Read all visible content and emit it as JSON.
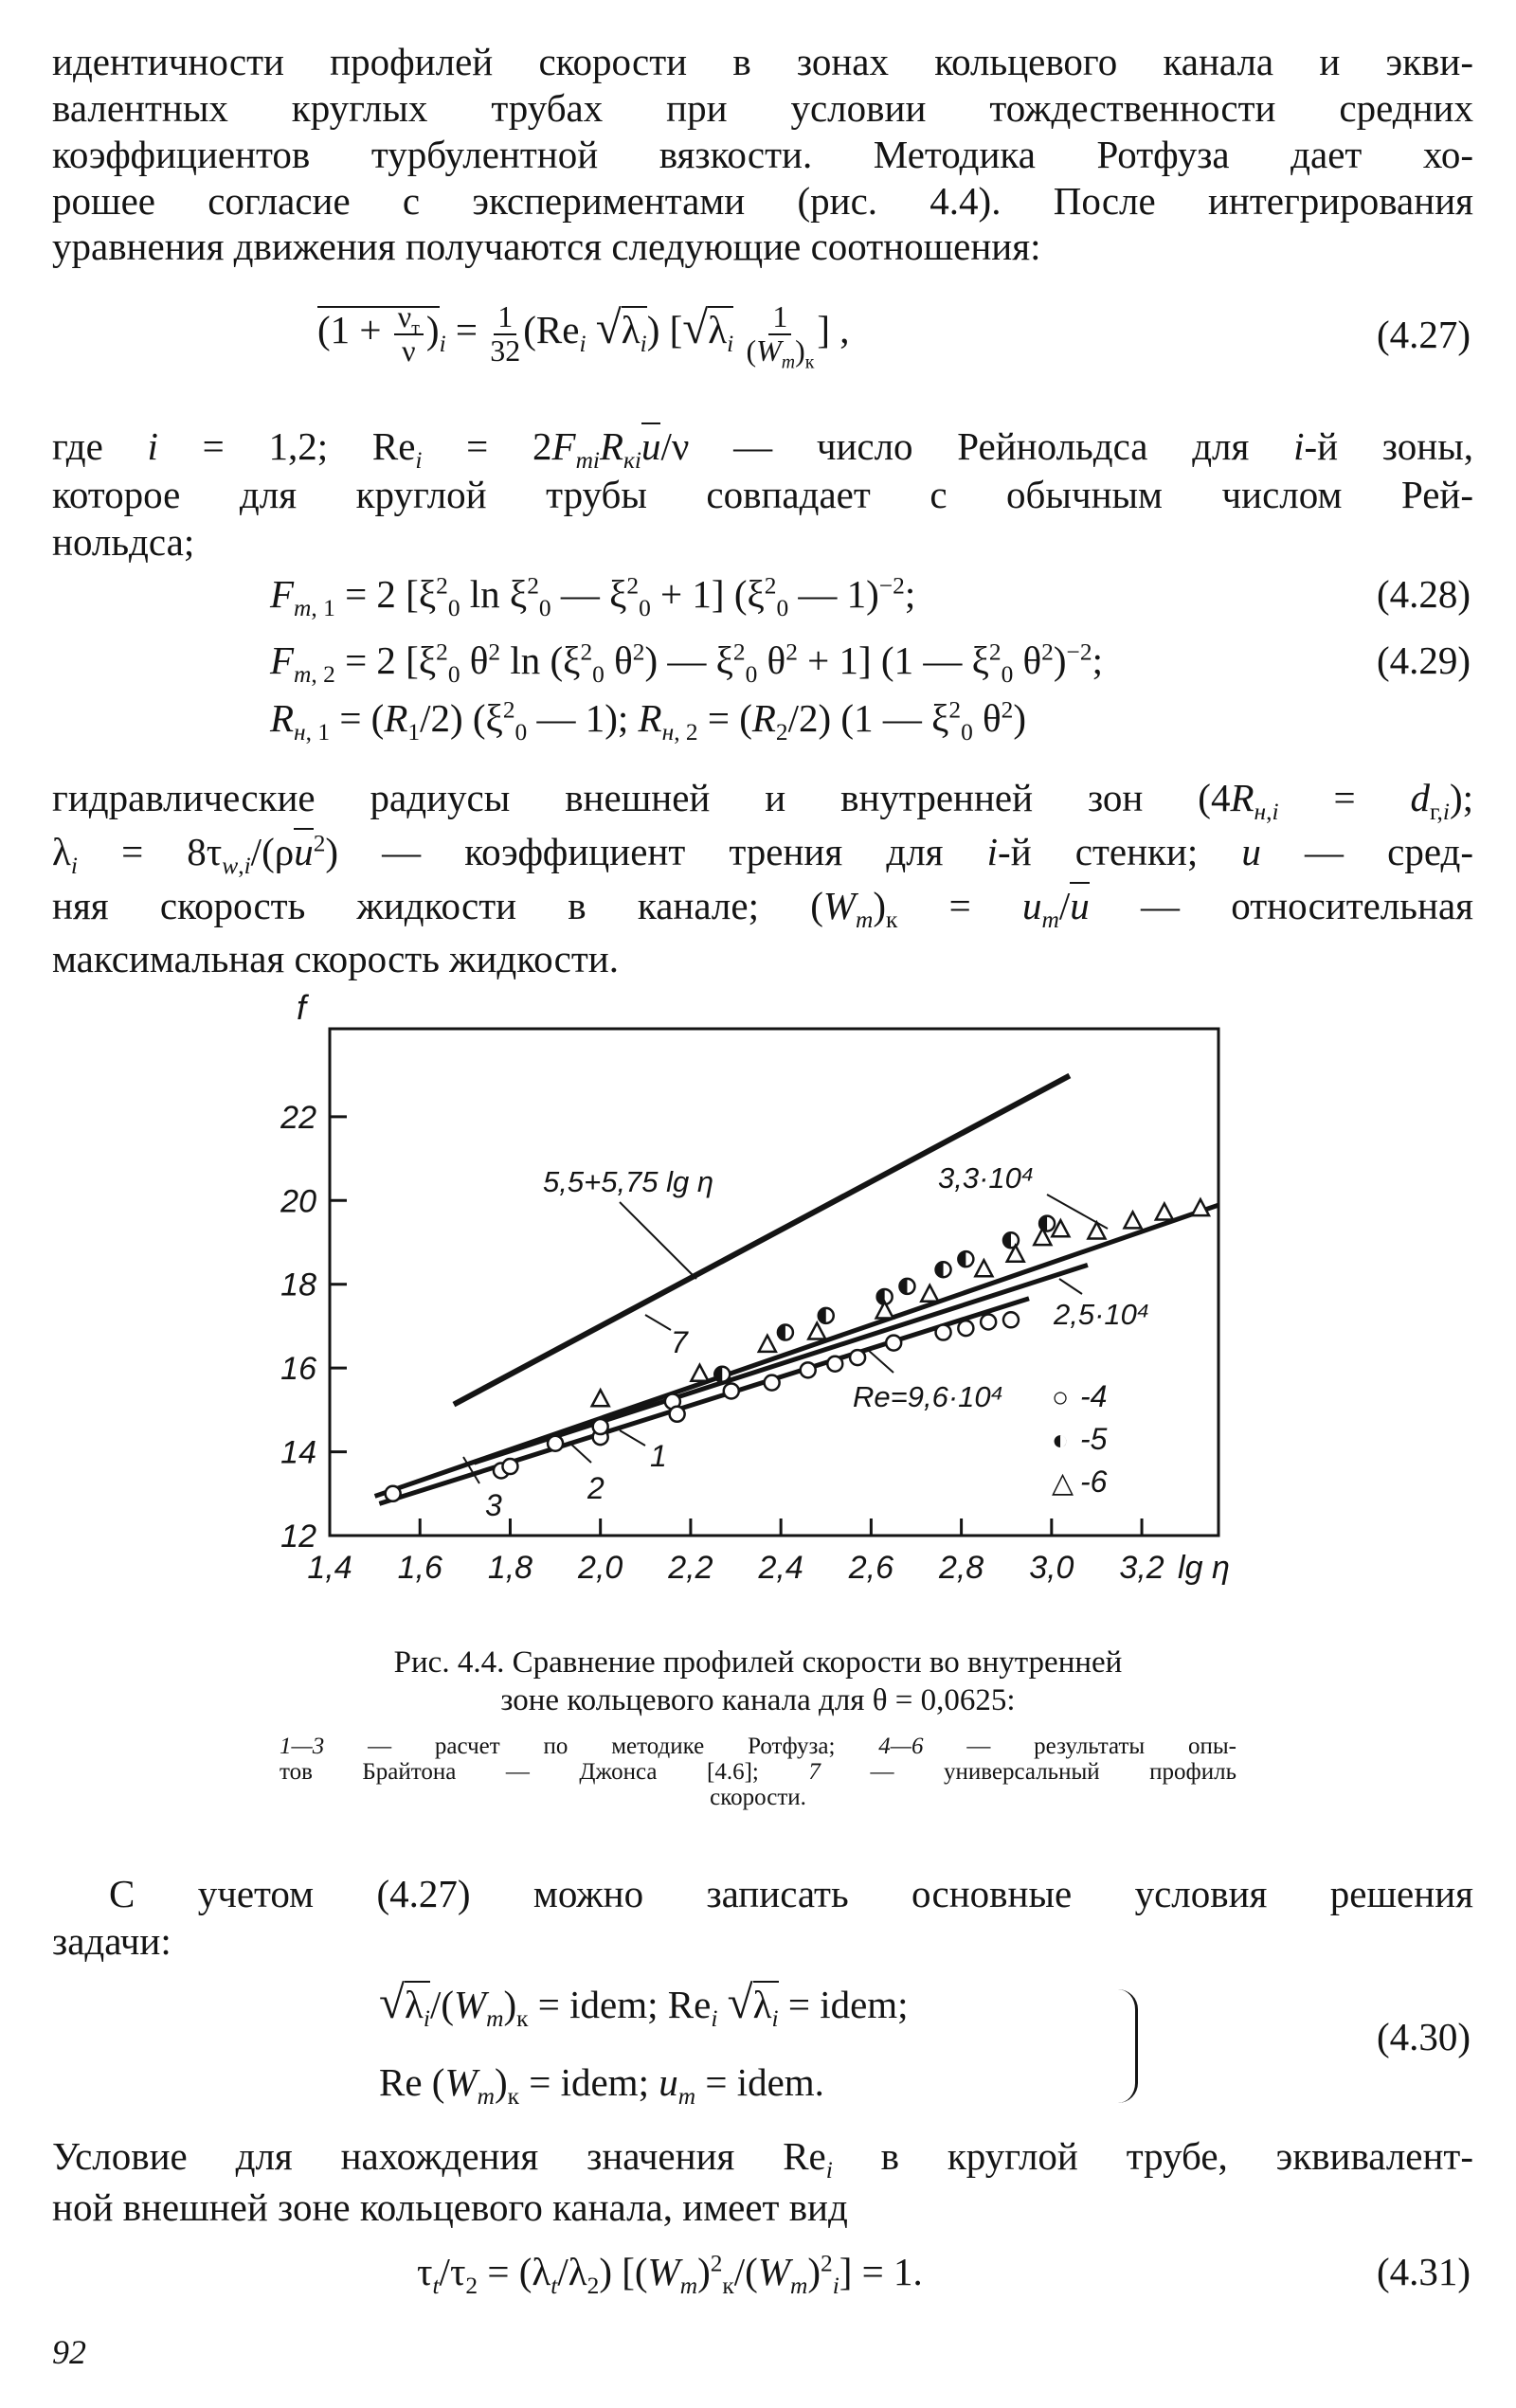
{
  "paragraph_1": [
    "идентичности профилей скорости в зонах кольцевого канала и экви-",
    "валентных круглых трубах при условии тождественности средних",
    "коэффициентов турбулентной вязкости. Методика Ротфуза дает хо-",
    "рошее согласие с экспериментами (рис. 4.4). После интегрирования",
    "уравнения движения получаются  следующие соотношения:"
  ],
  "eq_4_27": {
    "formula": "\\o{(1 + \\f{ν_{т}}{ν})}_{\\i{i}} = \\f{1}{32}(Re_{\\i{i}} \\s{λ_{\\i{i}}}) [\\s{λ_{\\i{i}}} \\f{1}{(\\i{W}_{\\i{m}})_{к}}] ,",
    "number": "(4.27)"
  },
  "paragraph_2": [
    "где \\i{i} = 1,2;  Re_{\\i{i}} = 2\\i{F}_{\\i{mi}}\\i{R}_{\\i{кi}}\\o{\\i{u}}/ν — число  Рейнольдса для \\i{i}-й зоны,",
    "которое  для  круглой трубы совпадает с обычным числом Рей-",
    "нольдса;"
  ],
  "eq_4_28": {
    "formula": "\\i{F}_{\\i{m}, 1} = 2 [ξ^{2}_{0} ln ξ^{2}_{0} — ξ^{2}_{0} + 1] (ξ^{2}_{0} — 1)^{−2};",
    "number": "(4.28)"
  },
  "eq_4_29": {
    "formula": "\\i{F}_{\\i{m}, 2} = 2 [ξ^{2}_{0} θ^{2} ln (ξ^{2}_{0} θ^{2}) — ξ^{2}_{0} θ^{2} + 1] (1 — ξ^{2}_{0} θ^{2})^{−2};",
    "number": "(4.29)"
  },
  "eq_R": {
    "formula": "\\i{R}_{\\i{н}, 1} = (\\i{R}_{1}/2) (ξ^{2}_{0} — 1);  \\i{R}_{\\i{н}, 2} = (\\i{R}_{2}/2) (1 — ξ^{2}_{0} θ^{2})"
  },
  "paragraph_3": [
    "гидравлические радиусы внешней  и  внутренней зон (4\\i{R}_{\\i{н},\\i{i}} = \\i{d}_{г,\\i{i}});",
    "λ_{\\i{i}} = 8τ_{\\i{w},\\i{i}}/(ρ\\o{\\i{u}}^{2}) — коэффициент трения для \\i{i}-й стенки; \\i{u} — сред-",
    "няя скорость жидкости в канале; (\\i{W}_{\\i{m}})_{к} = \\i{u}_{\\i{m}}/\\o{\\i{u}} — относительная",
    "максимальная скорость жидкости."
  ],
  "chart_data": {
    "type": "line",
    "ylabel": "f",
    "xlabel": "lg η",
    "xlim": [
      1.4,
      3.37
    ],
    "ylim": [
      12,
      24.1
    ],
    "x_ticks": [
      "1,4",
      "1,6",
      "1,8",
      "2,0",
      "2,2",
      "2,4",
      "2,6",
      "2,8",
      "3,0",
      "3,2"
    ],
    "x_tick_values": [
      1.4,
      1.6,
      1.8,
      2.0,
      2.2,
      2.4,
      2.6,
      2.8,
      3.0,
      3.2
    ],
    "y_ticks": [
      "12",
      "14",
      "16",
      "18",
      "20",
      "22"
    ],
    "y_tick_values": [
      12,
      14,
      16,
      18,
      20,
      22
    ],
    "grid": false,
    "lines": [
      {
        "id": "7",
        "label": "5,5+5,75 lg η",
        "x": [
          1.675,
          3.04
        ],
        "y": [
          15.13,
          22.98
        ]
      },
      {
        "id": "1",
        "label": "3,3·10⁴",
        "x": [
          1.5,
          3.37
        ],
        "y": [
          12.94,
          19.89
        ]
      },
      {
        "id": "2",
        "label": "2,5·10⁴",
        "x": [
          1.72,
          3.08
        ],
        "y": [
          13.74,
          18.46
        ]
      },
      {
        "id": "3",
        "label": "Re=9,6·10⁴",
        "x": [
          1.51,
          2.95
        ],
        "y": [
          12.76,
          17.66
        ]
      }
    ],
    "line_numbers": [
      "7",
      "1",
      "2",
      "3"
    ],
    "series": [
      {
        "name": "4",
        "marker": "open-circle",
        "x": [
          1.54,
          1.78,
          1.8,
          1.9,
          2.0,
          2.0,
          2.16,
          2.17,
          2.29,
          2.38,
          2.46,
          2.52,
          2.57,
          2.65,
          2.76,
          2.81,
          2.86,
          2.91
        ],
        "y": [
          13.0,
          13.55,
          13.65,
          14.2,
          14.35,
          14.6,
          15.2,
          14.9,
          15.45,
          15.65,
          15.95,
          16.1,
          16.25,
          16.6,
          16.85,
          16.95,
          17.1,
          17.15
        ]
      },
      {
        "name": "5",
        "marker": "half-filled-circle",
        "x": [
          2.27,
          2.41,
          2.5,
          2.63,
          2.68,
          2.76,
          2.81,
          2.91,
          2.99
        ],
        "y": [
          15.85,
          16.85,
          17.25,
          17.7,
          17.95,
          18.35,
          18.6,
          19.05,
          19.45
        ]
      },
      {
        "name": "6",
        "marker": "open-triangle",
        "x": [
          2.0,
          2.22,
          2.37,
          2.48,
          2.63,
          2.73,
          2.85,
          2.92,
          2.98,
          3.02,
          3.1,
          3.18,
          3.25,
          3.33
        ],
        "y": [
          15.25,
          15.85,
          16.55,
          16.85,
          17.35,
          17.75,
          18.35,
          18.7,
          19.1,
          19.3,
          19.25,
          19.5,
          19.7,
          19.8
        ]
      }
    ],
    "legend": [
      {
        "symbol": "○",
        "label": "-4"
      },
      {
        "symbol": "◐",
        "label": "-5"
      },
      {
        "symbol": "△",
        "label": "-6"
      }
    ],
    "legend_position": "lower-right"
  },
  "caption": {
    "lines": [
      "Рис. 4.4. Сравнение профилей скорости во внутренней",
      "зоне кольцевого канала для θ = 0,0625:"
    ],
    "notes": [
      "\\i{1—3} — расчет по методике Ротфуза; \\i{4—6} — результаты опы-",
      "тов  Брайтона — Джонса  [4.6];  \\i{7} — универсальный  профиль",
      "скорости."
    ]
  },
  "paragraph_4": [
    "С учетом  (4.27)  можно  записать  основные  условия  решения",
    "задачи:"
  ],
  "eq_4_30": {
    "line1": "\\s{λ_{\\i{i}}}/(\\i{W}_{\\i{m}})_{к} = idem;  Re_{\\i{i}} \\s{λ_{\\i{i}}} = idem;",
    "line2": "Re (\\i{W}_{\\i{m}})_{к} = idem;  \\i{u}_{\\i{m}} = idem.",
    "number": "(4.30)"
  },
  "paragraph_5": [
    "Условие для нахождения значения Re_{\\i{i}}  в круглой трубе, эквивалент-",
    "ной внешней зоне кольцевого канала, имеет вид"
  ],
  "eq_4_31": {
    "formula": "τ_{\\i{t}}/τ_{2} = (λ_{\\i{t}}/λ_{2}) [(\\i{W}_{\\i{m}})^{2}_{к}/(\\i{W}_{\\i{m}})^{2}_{\\i{i}}] = 1.",
    "number": "(4.31)"
  },
  "page_number": "92"
}
